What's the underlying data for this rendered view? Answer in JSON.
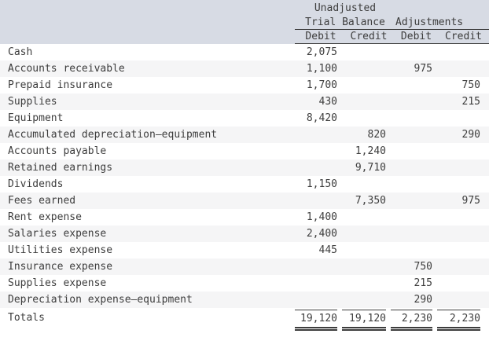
{
  "colors": {
    "header_bg": "#d7dbe4",
    "stripe_bg": "#f5f5f6",
    "text": "#3d3d3d",
    "rule": "#3d3d3d"
  },
  "table": {
    "header": {
      "group1_line1": "Unadjusted",
      "group1_line2": "Trial Balance",
      "group2": "Adjustments",
      "col_debit1": "Debit",
      "col_credit1": "Credit",
      "col_debit2": "Debit",
      "col_credit2": "Credit"
    },
    "rows": [
      {
        "account": "Cash",
        "utb_debit": "2,075",
        "utb_credit": "",
        "adj_debit": "",
        "adj_credit": ""
      },
      {
        "account": "Accounts receivable",
        "utb_debit": "1,100",
        "utb_credit": "",
        "adj_debit": "975",
        "adj_credit": ""
      },
      {
        "account": "Prepaid insurance",
        "utb_debit": "1,700",
        "utb_credit": "",
        "adj_debit": "",
        "adj_credit": "750"
      },
      {
        "account": "Supplies",
        "utb_debit": "430",
        "utb_credit": "",
        "adj_debit": "",
        "adj_credit": "215"
      },
      {
        "account": "Equipment",
        "utb_debit": "8,420",
        "utb_credit": "",
        "adj_debit": "",
        "adj_credit": ""
      },
      {
        "account": "Accumulated depreciation—equipment",
        "utb_debit": "",
        "utb_credit": "820",
        "adj_debit": "",
        "adj_credit": "290"
      },
      {
        "account": "Accounts payable",
        "utb_debit": "",
        "utb_credit": "1,240",
        "adj_debit": "",
        "adj_credit": ""
      },
      {
        "account": "Retained earnings",
        "utb_debit": "",
        "utb_credit": "9,710",
        "adj_debit": "",
        "adj_credit": ""
      },
      {
        "account": "Dividends",
        "utb_debit": "1,150",
        "utb_credit": "",
        "adj_debit": "",
        "adj_credit": ""
      },
      {
        "account": "Fees earned",
        "utb_debit": "",
        "utb_credit": "7,350",
        "adj_debit": "",
        "adj_credit": "975"
      },
      {
        "account": "Rent expense",
        "utb_debit": "1,400",
        "utb_credit": "",
        "adj_debit": "",
        "adj_credit": ""
      },
      {
        "account": "Salaries expense",
        "utb_debit": "2,400",
        "utb_credit": "",
        "adj_debit": "",
        "adj_credit": ""
      },
      {
        "account": "Utilities expense",
        "utb_debit": "445",
        "utb_credit": "",
        "adj_debit": "",
        "adj_credit": ""
      },
      {
        "account": "Insurance expense",
        "utb_debit": "",
        "utb_credit": "",
        "adj_debit": "750",
        "adj_credit": ""
      },
      {
        "account": "Supplies expense",
        "utb_debit": "",
        "utb_credit": "",
        "adj_debit": "215",
        "adj_credit": ""
      },
      {
        "account": "Depreciation expense—equipment",
        "utb_debit": "",
        "utb_credit": "",
        "adj_debit": "290",
        "adj_credit": ""
      }
    ],
    "totals": {
      "label": "Totals",
      "utb_debit": "19,120",
      "utb_credit": "19,120",
      "adj_debit": "2,230",
      "adj_credit": "2,230"
    }
  }
}
